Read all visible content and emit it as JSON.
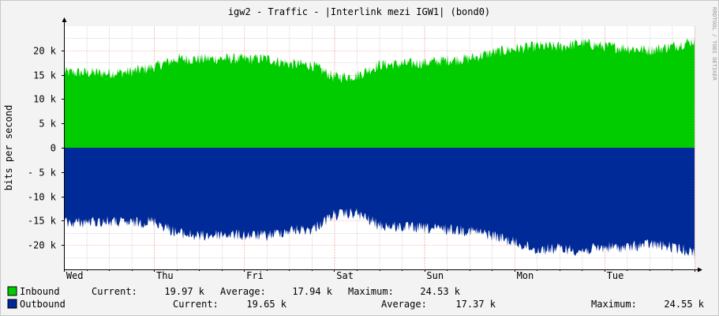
{
  "chart_data": {
    "type": "area",
    "title": "igw2 - Traffic - |Interlink mezi IGW1| (bond0)",
    "ylabel": "bits per second",
    "watermark": "RRDTOOL / TOBI OETIKER",
    "ylim": [
      -25000,
      25000
    ],
    "yticks": [
      {
        "value": 20000,
        "label": "20 k"
      },
      {
        "value": 15000,
        "label": "15 k"
      },
      {
        "value": 10000,
        "label": "10 k"
      },
      {
        "value": 5000,
        "label": "5 k"
      },
      {
        "value": 0,
        "label": "0"
      },
      {
        "value": -5000,
        "label": "- 5 k"
      },
      {
        "value": -10000,
        "label": "-10 k"
      },
      {
        "value": -15000,
        "label": "-15 k"
      },
      {
        "value": -20000,
        "label": "-20 k"
      }
    ],
    "xlim_days": [
      0,
      7
    ],
    "days": [
      "Wed",
      "Thu",
      "Fri",
      "Sat",
      "Sun",
      "Mon",
      "Tue"
    ],
    "grid": true,
    "colors": {
      "inbound": "#00cc00",
      "outbound": "#002a97",
      "axis": "#000000",
      "major_grid": "#ff8080",
      "minor_grid": "#b0b0b0"
    },
    "series": [
      {
        "name": "Inbound",
        "sign": 1,
        "x_days": [
          0,
          0.25,
          0.5,
          0.75,
          1,
          1.25,
          1.5,
          1.75,
          2,
          2.25,
          2.5,
          2.75,
          3,
          3.25,
          3.5,
          3.75,
          4,
          4.25,
          4.5,
          4.75,
          5,
          5.25,
          5.5,
          5.75,
          6,
          6.25,
          6.5,
          6.75,
          7
        ],
        "values": [
          15500,
          15400,
          15300,
          15600,
          16600,
          18200,
          18200,
          18300,
          18200,
          18300,
          17200,
          17000,
          14500,
          14800,
          17000,
          17200,
          17400,
          18000,
          18300,
          19500,
          20300,
          20800,
          20700,
          21500,
          20800,
          20500,
          20000,
          20800,
          22000
        ],
        "noise": 1200
      },
      {
        "name": "Outbound",
        "sign": -1,
        "x_days": [
          0,
          0.25,
          0.5,
          0.75,
          1,
          1.25,
          1.5,
          1.75,
          2,
          2.25,
          2.5,
          2.75,
          3,
          3.25,
          3.5,
          3.75,
          4,
          4.25,
          4.5,
          4.75,
          5,
          5.25,
          5.5,
          5.75,
          6,
          6.25,
          6.5,
          6.75,
          7
        ],
        "values": [
          15500,
          15300,
          15200,
          15500,
          15100,
          17500,
          18200,
          17800,
          18000,
          18100,
          17000,
          16800,
          13800,
          13500,
          16000,
          16300,
          16600,
          16800,
          17000,
          18000,
          19500,
          21000,
          20700,
          21200,
          20500,
          20500,
          19800,
          20500,
          21500
        ],
        "noise": 1200
      }
    ]
  },
  "legend": [
    {
      "name": "Inbound",
      "color": "#00cc00",
      "current_label": "Current:",
      "current": "19.97 k",
      "average_label": "Average:",
      "average": "17.94 k",
      "maximum_label": "Maximum:",
      "maximum": "24.53 k"
    },
    {
      "name": "Outbound",
      "color": "#002a97",
      "current_label": "Current:",
      "current": "19.65 k",
      "average_label": "Average:",
      "average": "17.37 k",
      "maximum_label": "Maximum:",
      "maximum": "24.55 k"
    }
  ]
}
